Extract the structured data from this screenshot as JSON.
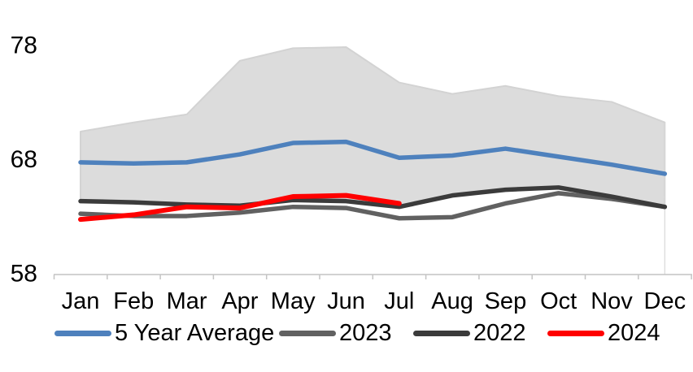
{
  "chart_data": {
    "type": "line",
    "title": "",
    "categories": [
      "Jan",
      "Feb",
      "Mar",
      "Apr",
      "May",
      "Jun",
      "Jul",
      "Aug",
      "Sep",
      "Oct",
      "Nov",
      "Dec"
    ],
    "y_axis": {
      "ticks": [
        58,
        68,
        78
      ],
      "min": 58,
      "max": 78
    },
    "ylim": [
      58,
      78
    ],
    "grid": "off",
    "axis_color": "#C4C4C4",
    "text_color": "#000000",
    "range_band": {
      "color": "#DCDCDC",
      "edge_color": "#D3D3D3",
      "upper": [
        70.6,
        71.4,
        72.1,
        76.8,
        77.9,
        78.0,
        74.9,
        73.9,
        74.6,
        73.7,
        73.2,
        71.4
      ],
      "lower": [
        64.6,
        64.5,
        64.3,
        64.1,
        64.6,
        64.5,
        64.1,
        65.0,
        65.5,
        65.8,
        65.0,
        64.1
      ]
    },
    "series": [
      {
        "name": "5 Year Average",
        "color": "#4E81BD",
        "width": 5.5,
        "values": [
          67.9,
          67.8,
          67.9,
          68.6,
          69.6,
          69.7,
          68.3,
          68.5,
          69.1,
          68.4,
          67.7,
          66.9
        ]
      },
      {
        "name": "2023",
        "color": "#616161",
        "width": 5.5,
        "values": [
          63.4,
          63.2,
          63.2,
          63.5,
          64.0,
          63.9,
          63.0,
          63.1,
          64.3,
          65.2,
          64.7,
          64.0
        ]
      },
      {
        "name": "2022",
        "color": "#3B3B3B",
        "width": 5.5,
        "values": [
          64.5,
          64.4,
          64.2,
          64.1,
          64.6,
          64.5,
          64.0,
          65.0,
          65.5,
          65.7,
          64.9,
          64.0
        ]
      },
      {
        "name": "2024",
        "color": "#FF0000",
        "width": 6,
        "values": [
          62.9,
          63.3,
          64.0,
          63.9,
          64.9,
          65.0,
          64.3,
          null,
          null,
          null,
          null,
          null
        ]
      }
    ],
    "legend": {
      "position": "bottom",
      "items": [
        "5 Year Average",
        "2023",
        "2022",
        "2024"
      ]
    }
  }
}
